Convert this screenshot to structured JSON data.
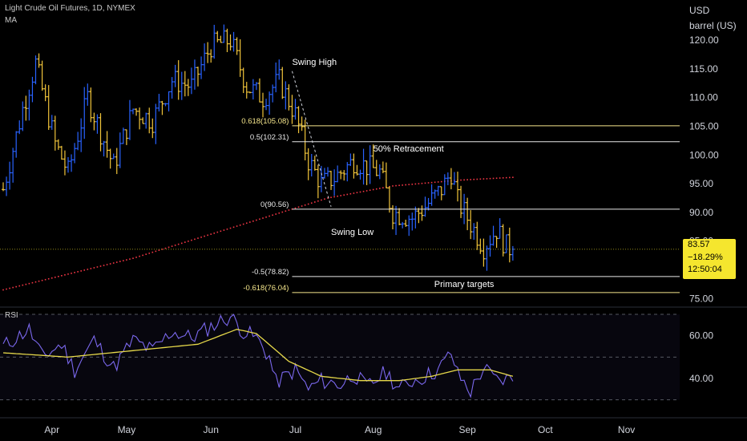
{
  "header": {
    "symbol_line": "Light Crude Oil Futures, 1D, NYMEX",
    "indicator": "MA"
  },
  "axis": {
    "currency": "USD",
    "unit": "barrel (US)"
  },
  "rsi_label": "RSI",
  "last_price": {
    "price": "83.57",
    "change": "−18.29%",
    "countdown": "12:50:04"
  },
  "colors": {
    "background": "#000000",
    "bar_up": "#2962ff",
    "bar_down": "#f0c43a",
    "ma": "#f23645",
    "level_line": "#f5e68c",
    "rsi": "#7b68ee",
    "rsi_ma": "#e6d84a",
    "price_box": "#f5e62e"
  },
  "chart_data": {
    "type": "ohlc",
    "title": "Light Crude Oil Futures, 1D, NYMEX",
    "y_ticks": [
      120.0,
      115.0,
      110.0,
      105.0,
      100.0,
      95.0,
      90.0,
      85.0,
      75.0
    ],
    "ylim": [
      73.5,
      127
    ],
    "x_ticks": [
      "Apr",
      "May",
      "Jun",
      "Jul",
      "Aug",
      "Sep",
      "Oct",
      "Nov"
    ],
    "close_path": [
      {
        "i": 0,
        "v": 94
      },
      {
        "i": 6,
        "v": 108
      },
      {
        "i": 10,
        "v": 116
      },
      {
        "i": 16,
        "v": 102
      },
      {
        "i": 20,
        "v": 97
      },
      {
        "i": 26,
        "v": 110
      },
      {
        "i": 34,
        "v": 98
      },
      {
        "i": 40,
        "v": 108
      },
      {
        "i": 46,
        "v": 106
      },
      {
        "i": 52,
        "v": 113
      },
      {
        "i": 58,
        "v": 112
      },
      {
        "i": 64,
        "v": 119
      },
      {
        "i": 70,
        "v": 120
      },
      {
        "i": 75,
        "v": 112
      },
      {
        "i": 80,
        "v": 110
      },
      {
        "i": 85,
        "v": 113
      },
      {
        "i": 90,
        "v": 107
      },
      {
        "i": 94,
        "v": 99
      },
      {
        "i": 98,
        "v": 95
      },
      {
        "i": 102,
        "v": 96
      },
      {
        "i": 108,
        "v": 99
      },
      {
        "i": 112,
        "v": 98
      },
      {
        "i": 116,
        "v": 97
      },
      {
        "i": 120,
        "v": 90
      },
      {
        "i": 126,
        "v": 89
      },
      {
        "i": 130,
        "v": 91
      },
      {
        "i": 135,
        "v": 94
      },
      {
        "i": 138,
        "v": 97
      },
      {
        "i": 140,
        "v": 92
      },
      {
        "i": 144,
        "v": 88
      },
      {
        "i": 148,
        "v": 84
      },
      {
        "i": 152,
        "v": 87
      },
      {
        "i": 155,
        "v": 84
      },
      {
        "i": 157,
        "v": 83.57
      }
    ],
    "ma_path": [
      {
        "i": 0,
        "v": 76.5
      },
      {
        "i": 40,
        "v": 82
      },
      {
        "i": 80,
        "v": 89
      },
      {
        "i": 100,
        "v": 92.5
      },
      {
        "i": 120,
        "v": 94.6
      },
      {
        "i": 140,
        "v": 95.6
      },
      {
        "i": 157,
        "v": 96.1
      }
    ],
    "fib_levels": [
      {
        "label": "0.618(105.08)",
        "value": 105.08,
        "highlight": true
      },
      {
        "label": "0.5(102.31)",
        "value": 102.31,
        "highlight": false
      },
      {
        "label": "0(90.56)",
        "value": 90.56,
        "highlight": false
      },
      {
        "label": "-0.5(78.82)",
        "value": 78.82,
        "highlight": false
      },
      {
        "label": "-0.618(76.04)",
        "value": 76.04,
        "highlight": true
      }
    ],
    "annotations": [
      {
        "text": "Swing High",
        "value": 114.6
      },
      {
        "text": "Swing Low",
        "value": 88.0
      },
      {
        "text": "50% Retracement",
        "value": 100.6
      },
      {
        "text": "Primary targets",
        "value": 77.0
      }
    ],
    "rsi": {
      "ticks": [
        60.0,
        40.0
      ],
      "ylim": [
        22,
        73
      ],
      "bands": [
        70,
        50,
        30
      ],
      "rsi_path": [
        {
          "i": 0,
          "v": 55
        },
        {
          "i": 8,
          "v": 63
        },
        {
          "i": 12,
          "v": 50
        },
        {
          "i": 18,
          "v": 56
        },
        {
          "i": 22,
          "v": 44
        },
        {
          "i": 28,
          "v": 58
        },
        {
          "i": 34,
          "v": 45
        },
        {
          "i": 40,
          "v": 58
        },
        {
          "i": 46,
          "v": 53
        },
        {
          "i": 52,
          "v": 62
        },
        {
          "i": 58,
          "v": 59
        },
        {
          "i": 66,
          "v": 66
        },
        {
          "i": 70,
          "v": 69
        },
        {
          "i": 74,
          "v": 62
        },
        {
          "i": 78,
          "v": 59
        },
        {
          "i": 82,
          "v": 50
        },
        {
          "i": 84,
          "v": 38
        },
        {
          "i": 90,
          "v": 44
        },
        {
          "i": 94,
          "v": 35
        },
        {
          "i": 98,
          "v": 39
        },
        {
          "i": 104,
          "v": 37
        },
        {
          "i": 108,
          "v": 42
        },
        {
          "i": 112,
          "v": 36
        },
        {
          "i": 118,
          "v": 43
        },
        {
          "i": 122,
          "v": 35
        },
        {
          "i": 126,
          "v": 39
        },
        {
          "i": 130,
          "v": 41
        },
        {
          "i": 134,
          "v": 44
        },
        {
          "i": 138,
          "v": 52
        },
        {
          "i": 140,
          "v": 42
        },
        {
          "i": 144,
          "v": 34
        },
        {
          "i": 148,
          "v": 45
        },
        {
          "i": 152,
          "v": 39
        },
        {
          "i": 157,
          "v": 40
        }
      ],
      "rsi_ma_path": [
        {
          "i": 0,
          "v": 52
        },
        {
          "i": 20,
          "v": 50
        },
        {
          "i": 40,
          "v": 53
        },
        {
          "i": 60,
          "v": 56
        },
        {
          "i": 72,
          "v": 63
        },
        {
          "i": 78,
          "v": 61
        },
        {
          "i": 88,
          "v": 48
        },
        {
          "i": 98,
          "v": 41
        },
        {
          "i": 110,
          "v": 39
        },
        {
          "i": 122,
          "v": 39
        },
        {
          "i": 132,
          "v": 41
        },
        {
          "i": 140,
          "v": 44
        },
        {
          "i": 150,
          "v": 44
        },
        {
          "i": 157,
          "v": 41
        }
      ]
    }
  }
}
